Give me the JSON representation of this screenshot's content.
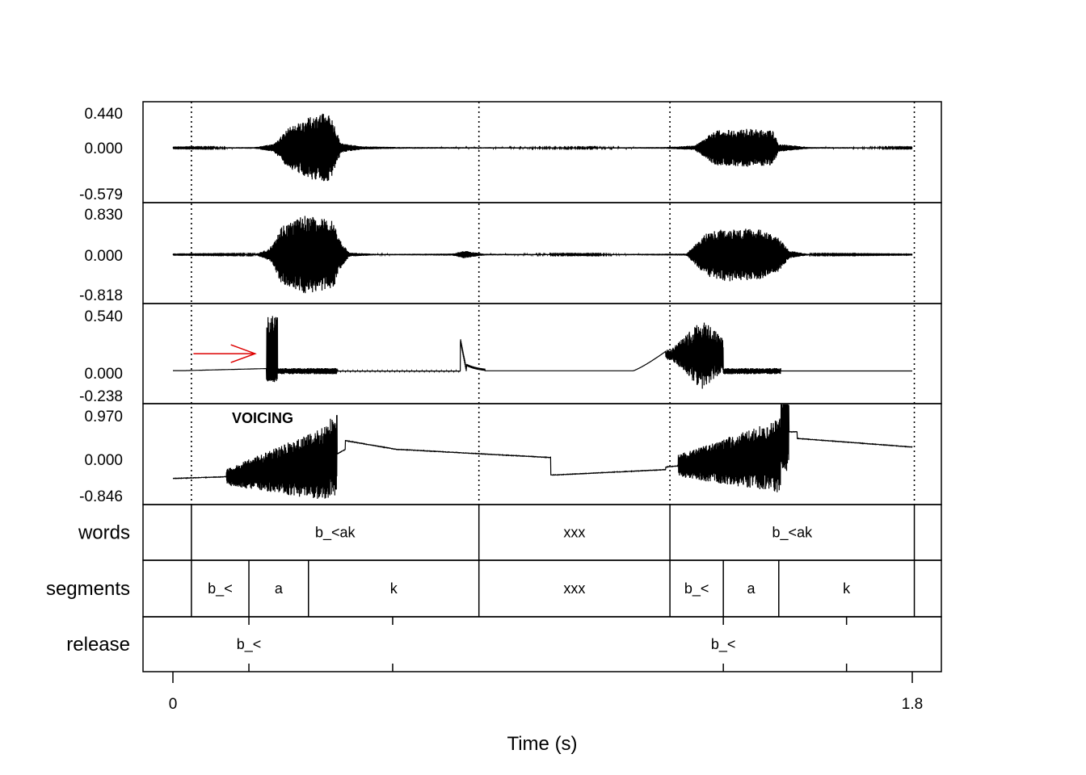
{
  "chart_data": {
    "type": "line",
    "xlabel": "Time (s)",
    "xlim": [
      0,
      1.8
    ],
    "x_ticks": [
      "0",
      "1.8"
    ],
    "boundary_times": [
      0.045,
      0.745,
      1.21,
      1.805
    ],
    "waveforms": [
      {
        "ylim": [
          -0.579,
          0.44
        ],
        "y_ticks": [
          "0.440",
          "0.000",
          "-0.579"
        ],
        "envelope": [
          [
            0,
            0.004
          ],
          [
            0.1,
            0.006
          ],
          [
            0.2,
            0.01
          ],
          [
            0.245,
            0.05
          ],
          [
            0.28,
            0.25
          ],
          [
            0.33,
            0.38
          ],
          [
            0.36,
            0.44
          ],
          [
            0.385,
            0.42
          ],
          [
            0.395,
            0.25
          ],
          [
            0.41,
            0.06
          ],
          [
            0.46,
            0.02
          ],
          [
            0.55,
            0.01
          ],
          [
            0.75,
            0.008
          ],
          [
            1.0,
            0.006
          ],
          [
            1.2,
            0.01
          ],
          [
            1.27,
            0.03
          ],
          [
            1.32,
            0.22
          ],
          [
            1.4,
            0.24
          ],
          [
            1.46,
            0.22
          ],
          [
            1.475,
            0.05
          ],
          [
            1.55,
            0.01
          ],
          [
            1.8,
            0.005
          ]
        ]
      },
      {
        "ylim": [
          -0.818,
          0.83
        ],
        "y_ticks": [
          "0.830",
          "0.000",
          "-0.818"
        ],
        "envelope": [
          [
            0,
            0.005
          ],
          [
            0.2,
            0.01
          ],
          [
            0.235,
            0.12
          ],
          [
            0.265,
            0.6
          ],
          [
            0.32,
            0.8
          ],
          [
            0.39,
            0.7
          ],
          [
            0.41,
            0.25
          ],
          [
            0.43,
            0.04
          ],
          [
            0.5,
            0.012
          ],
          [
            0.68,
            0.02
          ],
          [
            0.71,
            0.08
          ],
          [
            0.73,
            0.05
          ],
          [
            0.76,
            0.015
          ],
          [
            1.0,
            0.008
          ],
          [
            1.25,
            0.02
          ],
          [
            1.3,
            0.45
          ],
          [
            1.35,
            0.55
          ],
          [
            1.43,
            0.52
          ],
          [
            1.475,
            0.35
          ],
          [
            1.5,
            0.08
          ],
          [
            1.55,
            0.01
          ],
          [
            1.8,
            0.005
          ]
        ]
      },
      {
        "ylim": [
          -0.238,
          0.54
        ],
        "y_ticks": [
          "0.540",
          "0.000",
          "-0.238"
        ],
        "annotation_arrow": [
          [
            0.05,
            0.17
          ],
          [
            0.2,
            0.17
          ]
        ]
      },
      {
        "ylim": [
          -0.846,
          0.97
        ],
        "y_ticks": [
          "0.970",
          "0.000",
          "-0.846"
        ],
        "annotation": "VOICING"
      }
    ],
    "tiers": [
      {
        "name": "words",
        "intervals": [
          {
            "start": 0.045,
            "end": 0.745,
            "label": "b_<ak"
          },
          {
            "start": 0.745,
            "end": 1.21,
            "label": "xxx"
          },
          {
            "start": 1.21,
            "end": 1.805,
            "label": "b_<ak"
          }
        ]
      },
      {
        "name": "segments",
        "intervals": [
          {
            "start": 0.045,
            "end": 0.185,
            "label": "b_<"
          },
          {
            "start": 0.185,
            "end": 0.33,
            "label": "a"
          },
          {
            "start": 0.33,
            "end": 0.745,
            "label": "k"
          },
          {
            "start": 0.745,
            "end": 1.21,
            "label": "xxx"
          },
          {
            "start": 1.21,
            "end": 1.34,
            "label": "b_<"
          },
          {
            "start": 1.34,
            "end": 1.475,
            "label": "a"
          },
          {
            "start": 1.475,
            "end": 1.805,
            "label": "k"
          }
        ]
      },
      {
        "name": "release",
        "points": [
          {
            "time": 0.185,
            "label": "b_<"
          },
          {
            "time": 0.535,
            "label": ""
          },
          {
            "time": 1.34,
            "label": "b_<"
          },
          {
            "time": 1.64,
            "label": ""
          }
        ]
      }
    ]
  },
  "colors": {
    "trace": "#000000",
    "arrow": "#dd0000",
    "frame": "#000000"
  }
}
